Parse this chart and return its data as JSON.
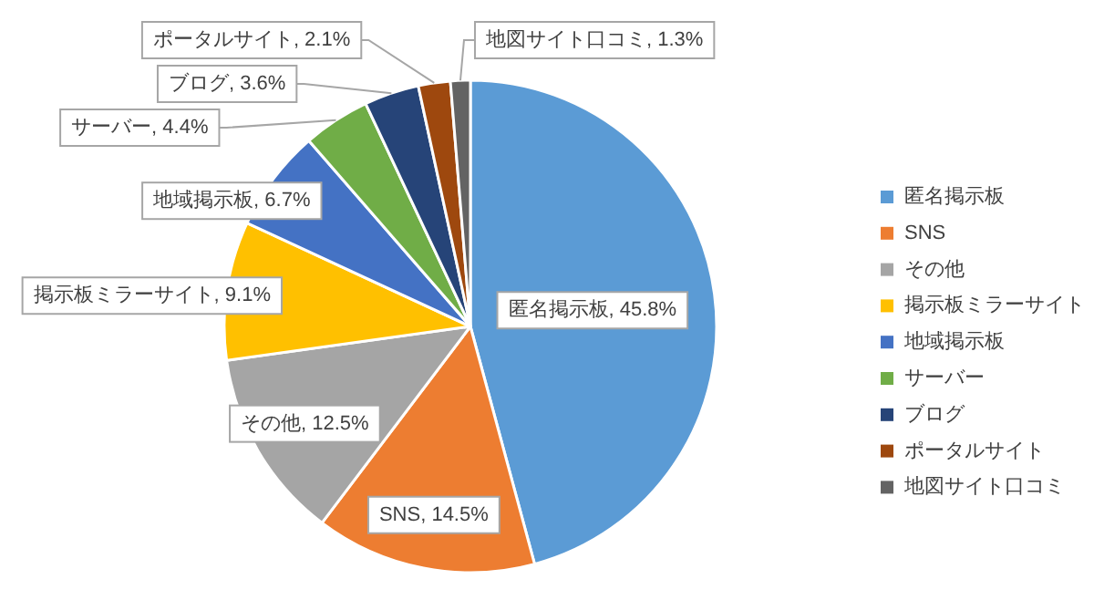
{
  "chart_data": {
    "type": "pie",
    "categories": [
      "匿名掲示板",
      "SNS",
      "その他",
      "掲示板ミラーサイト",
      "地域掲示板",
      "サーバー",
      "ブログ",
      "ポータルサイト",
      "地図サイト口コミ"
    ],
    "values": [
      45.8,
      14.5,
      12.5,
      9.1,
      6.7,
      4.4,
      3.6,
      2.1,
      1.3
    ],
    "value_labels": [
      ", 45.8%",
      ", 14.5%",
      ", 12.5%",
      ", 9.1%",
      ", 6.7%",
      ", 4.4%",
      ", 3.6%",
      ", 2.1%",
      ", 1.3%"
    ],
    "colors": [
      "#5b9bd5",
      "#ed7d31",
      "#a5a5a5",
      "#ffc000",
      "#4472c4",
      "#70ad47",
      "#264478",
      "#9e480e",
      "#636363"
    ],
    "legend": "right"
  }
}
